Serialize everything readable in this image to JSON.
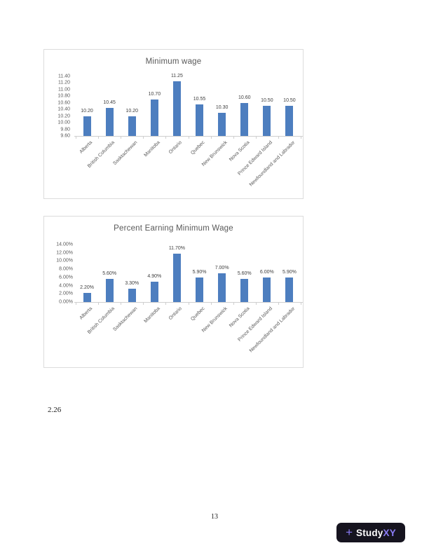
{
  "page": {
    "section_label": "2.26",
    "page_number": "13"
  },
  "chart_data": [
    {
      "type": "bar",
      "title": "Minimum wage",
      "categories": [
        "Alberta",
        "British Columbia",
        "Sasktachewan",
        "Manitoba",
        "Ontario",
        "Quebec",
        "New Brunswick",
        "Nova Scotia",
        "Prince Edward Island",
        "Newfoundland and Labrador"
      ],
      "values": [
        10.2,
        10.45,
        10.2,
        10.7,
        11.25,
        10.55,
        10.3,
        10.6,
        10.5,
        10.5
      ],
      "data_labels": [
        "10.20",
        "10.45",
        "10.20",
        "10.70",
        "11.25",
        "10.55",
        "10.30",
        "10.60",
        "10.50",
        "10.50"
      ],
      "y_ticks": [
        "11.40",
        "11.20",
        "11.00",
        "10.80",
        "10.60",
        "10.40",
        "10.20",
        "10.00",
        "9.80",
        "9.60"
      ],
      "ylim": [
        9.6,
        11.4
      ],
      "xlabel": "",
      "ylabel": "",
      "grid": false,
      "legend": false
    },
    {
      "type": "bar",
      "title": "Percent Earning Minimum Wage",
      "categories": [
        "Alberta",
        "British Columbia",
        "Sasktachewan",
        "Manitoba",
        "Ontario",
        "Quebec",
        "New Brunswick",
        "Nova Scotia",
        "Prince Edward Island",
        "Newfoundland and Labrador"
      ],
      "values": [
        2.2,
        5.6,
        3.3,
        4.9,
        11.7,
        5.9,
        7.0,
        5.6,
        6.0,
        5.9
      ],
      "data_labels": [
        "2.20%",
        "5.60%",
        "3.30%",
        "4.90%",
        "11.70%",
        "5.90%",
        "7.00%",
        "5.60%",
        "6.00%",
        "5.90%"
      ],
      "y_ticks": [
        "14.00%",
        "12.00%",
        "10.00%",
        "8.00%",
        "6.00%",
        "4.00%",
        "2.00%",
        "0.00%"
      ],
      "ylim": [
        0,
        14
      ],
      "xlabel": "",
      "ylabel": "",
      "grid": false,
      "legend": false
    }
  ],
  "logo": {
    "plus_icon": "+",
    "brand_primary": "Study",
    "brand_accent": "XY"
  },
  "colors": {
    "bar": "#4d7ebf",
    "chart_text": "#595959",
    "data_label_text": "#404040",
    "logo_background": "#16141f",
    "logo_accent": "#8b7cf6",
    "logo_text": "#ffffff"
  }
}
